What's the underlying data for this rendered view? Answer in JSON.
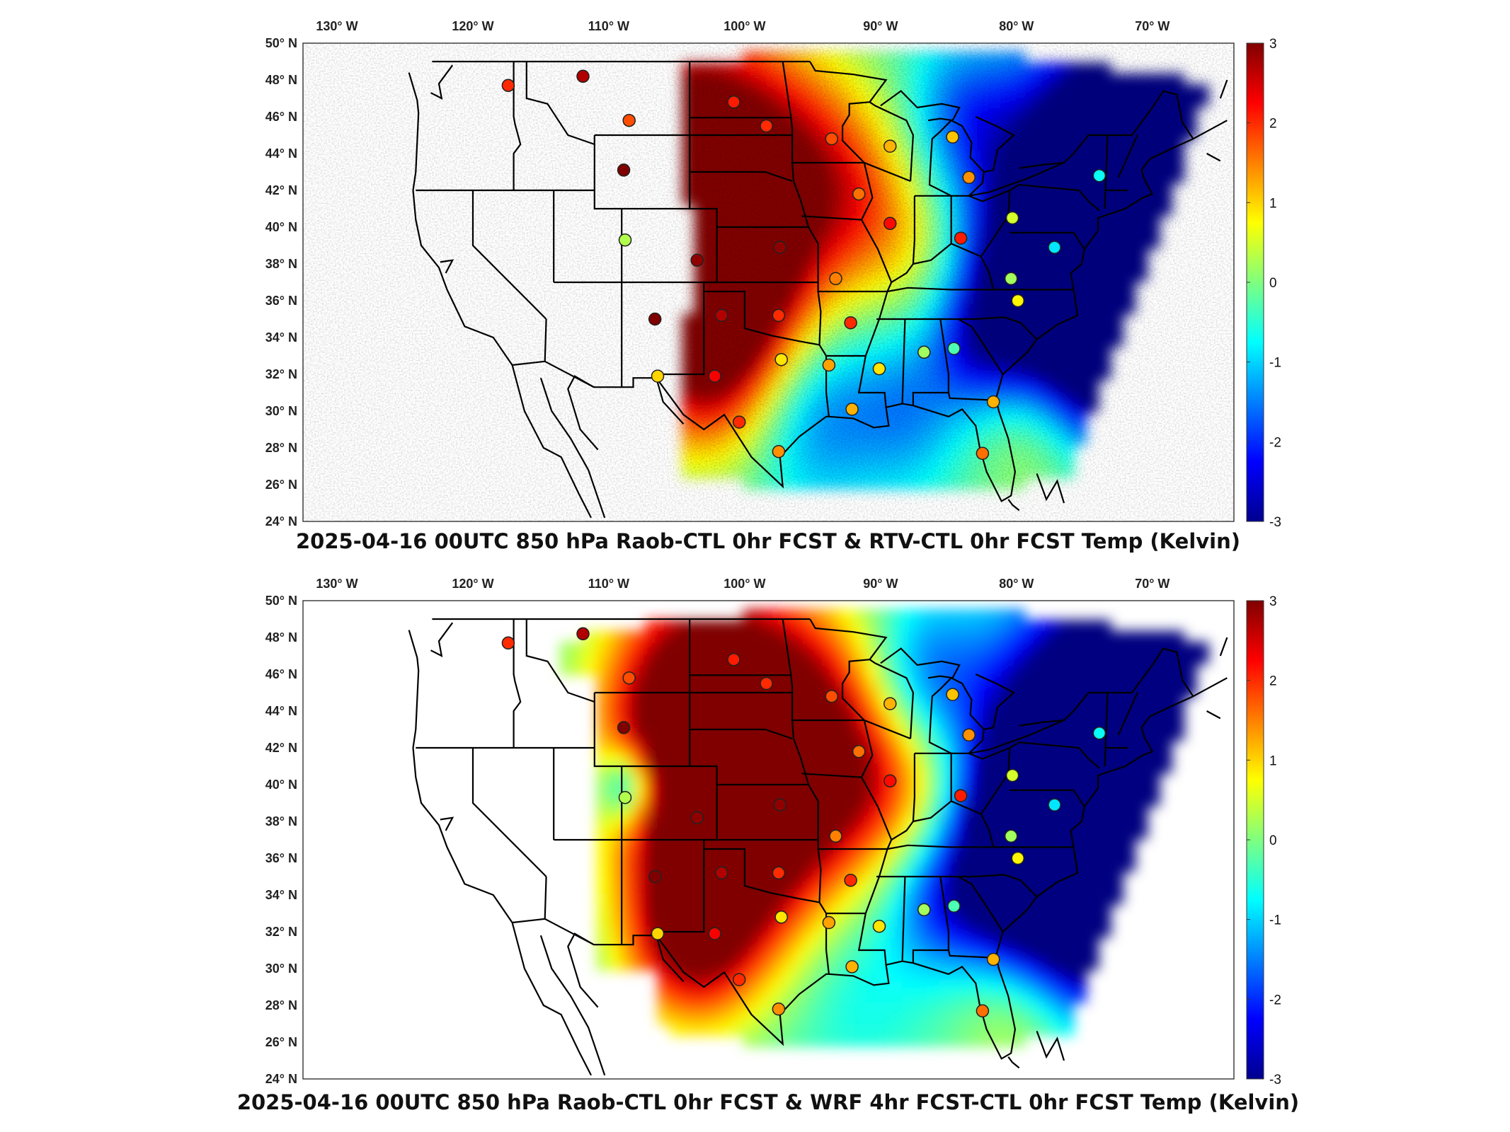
{
  "panels": [
    {
      "title": "2025-04-16 00UTC 850 hPa Raob-CTL 0hr FCST & RTV-CTL 0hr FCST Temp (Kelvin)",
      "lon_labels": [
        "130° W",
        "120° W",
        "110° W",
        "100° W",
        "90° W",
        "80° W",
        "70° W"
      ],
      "lat_labels": [
        "50° N",
        "48° N",
        "46° N",
        "44° N",
        "42° N",
        "40° N",
        "38° N",
        "36° N",
        "34° N",
        "32° N",
        "30° N",
        "28° N",
        "26° N",
        "24° N"
      ],
      "colorbar": {
        "ticks": [
          "3",
          "2",
          "1",
          "0",
          "-1",
          "-2",
          "-3"
        ],
        "min": -3,
        "max": 3
      }
    },
    {
      "title": "2025-04-16 00UTC 850 hPa Raob-CTL 0hr FCST & WRF 4hr FCST-CTL 0hr FCST Temp (Kelvin)",
      "lon_labels": [
        "130° W",
        "120° W",
        "110° W",
        "100° W",
        "90° W",
        "80° W",
        "70° W"
      ],
      "lat_labels": [
        "50° N",
        "48° N",
        "46° N",
        "44° N",
        "42° N",
        "40° N",
        "38° N",
        "36° N",
        "34° N",
        "32° N",
        "30° N",
        "28° N",
        "26° N",
        "24° N"
      ],
      "colorbar": {
        "ticks": [
          "3",
          "2",
          "1",
          "0",
          "-1",
          "-2",
          "-3"
        ],
        "min": -3,
        "max": 3
      }
    }
  ],
  "raob_stations": [
    {
      "lon": -117.4,
      "lat": 47.7,
      "v": 2.0
    },
    {
      "lon": -108.5,
      "lat": 45.8,
      "v": 1.8
    },
    {
      "lon": -111.9,
      "lat": 48.2,
      "v": 2.7
    },
    {
      "lon": -100.8,
      "lat": 46.8,
      "v": 2.1
    },
    {
      "lon": -98.4,
      "lat": 45.5,
      "v": 2.0
    },
    {
      "lon": -93.6,
      "lat": 44.8,
      "v": 1.8
    },
    {
      "lon": -89.3,
      "lat": 44.4,
      "v": 1.2
    },
    {
      "lon": -84.7,
      "lat": 44.9,
      "v": 1.1
    },
    {
      "lon": -83.5,
      "lat": 42.7,
      "v": 1.4
    },
    {
      "lon": -108.9,
      "lat": 43.1,
      "v": 3.0
    },
    {
      "lon": -91.6,
      "lat": 41.8,
      "v": 1.6
    },
    {
      "lon": -89.3,
      "lat": 40.2,
      "v": 2.2
    },
    {
      "lon": -84.1,
      "lat": 39.4,
      "v": 2.1
    },
    {
      "lon": -80.3,
      "lat": 40.5,
      "v": 0.5
    },
    {
      "lon": -73.9,
      "lat": 42.8,
      "v": -0.7
    },
    {
      "lon": -77.2,
      "lat": 38.9,
      "v": -0.9
    },
    {
      "lon": -80.4,
      "lat": 37.2,
      "v": 0.2
    },
    {
      "lon": -79.9,
      "lat": 36.0,
      "v": 0.8
    },
    {
      "lon": -108.8,
      "lat": 39.3,
      "v": 0.3
    },
    {
      "lon": -103.5,
      "lat": 38.2,
      "v": 2.9
    },
    {
      "lon": -97.4,
      "lat": 38.9,
      "v": 2.9
    },
    {
      "lon": -93.3,
      "lat": 37.2,
      "v": 1.5
    },
    {
      "lon": -106.6,
      "lat": 35.0,
      "v": 3.0
    },
    {
      "lon": -101.7,
      "lat": 35.2,
      "v": 2.7
    },
    {
      "lon": -97.5,
      "lat": 35.2,
      "v": 2.0
    },
    {
      "lon": -92.2,
      "lat": 34.8,
      "v": 2.0
    },
    {
      "lon": -86.8,
      "lat": 33.2,
      "v": 0.2
    },
    {
      "lon": -84.6,
      "lat": 33.4,
      "v": -0.3
    },
    {
      "lon": -106.4,
      "lat": 31.9,
      "v": 1.0
    },
    {
      "lon": -102.2,
      "lat": 31.9,
      "v": 2.3
    },
    {
      "lon": -97.3,
      "lat": 32.8,
      "v": 0.9
    },
    {
      "lon": -93.8,
      "lat": 32.5,
      "v": 1.3
    },
    {
      "lon": -90.1,
      "lat": 32.3,
      "v": 0.9
    },
    {
      "lon": -100.4,
      "lat": 29.4,
      "v": 2.0
    },
    {
      "lon": -97.5,
      "lat": 27.8,
      "v": 1.4
    },
    {
      "lon": -92.1,
      "lat": 30.1,
      "v": 1.2
    },
    {
      "lon": -81.7,
      "lat": 30.5,
      "v": 1.2
    },
    {
      "lon": -82.5,
      "lat": 27.7,
      "v": 1.6
    }
  ],
  "colors": {
    "frame": "#333333",
    "boundary": "#000000",
    "no_data": "#ffffff"
  }
}
